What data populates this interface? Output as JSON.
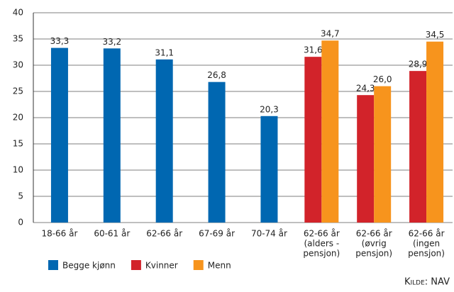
{
  "chart_data": {
    "type": "bar",
    "categories": [
      [
        "18-66 år"
      ],
      [
        "60-61 år"
      ],
      [
        "62-66 år"
      ],
      [
        "67-69 år"
      ],
      [
        "70-74 år"
      ],
      [
        "62-66 år",
        "(alders -",
        "pensjon)"
      ],
      [
        "62-66 år",
        "(øvrig",
        "pensjon)"
      ],
      [
        "62-66 år",
        "(ingen",
        "pensjon)"
      ]
    ],
    "series": [
      {
        "name": "Begge kjønn",
        "color": "#0067b1",
        "values": [
          33.3,
          33.2,
          31.1,
          26.8,
          20.3,
          null,
          null,
          null
        ],
        "value_labels": [
          "33,3",
          "33,2",
          "31,1",
          "26,8",
          "20,3",
          null,
          null,
          null
        ]
      },
      {
        "name": "Kvinner",
        "color": "#d2232a",
        "values": [
          null,
          null,
          null,
          null,
          null,
          31.6,
          24.3,
          28.9
        ],
        "value_labels": [
          null,
          null,
          null,
          null,
          null,
          "31,6",
          "24,3",
          "28,9"
        ]
      },
      {
        "name": "Menn",
        "color": "#f7941d",
        "values": [
          null,
          null,
          null,
          null,
          null,
          34.7,
          26.0,
          34.5
        ],
        "value_labels": [
          null,
          null,
          null,
          null,
          null,
          "34,7",
          "26,0",
          "34,5"
        ]
      }
    ],
    "ylim": [
      0,
      40
    ],
    "yticks": [
      0,
      5,
      10,
      15,
      20,
      25,
      30,
      35,
      40
    ],
    "grid": true,
    "legend": "bottom-left",
    "source": "Kilde: NAV"
  }
}
